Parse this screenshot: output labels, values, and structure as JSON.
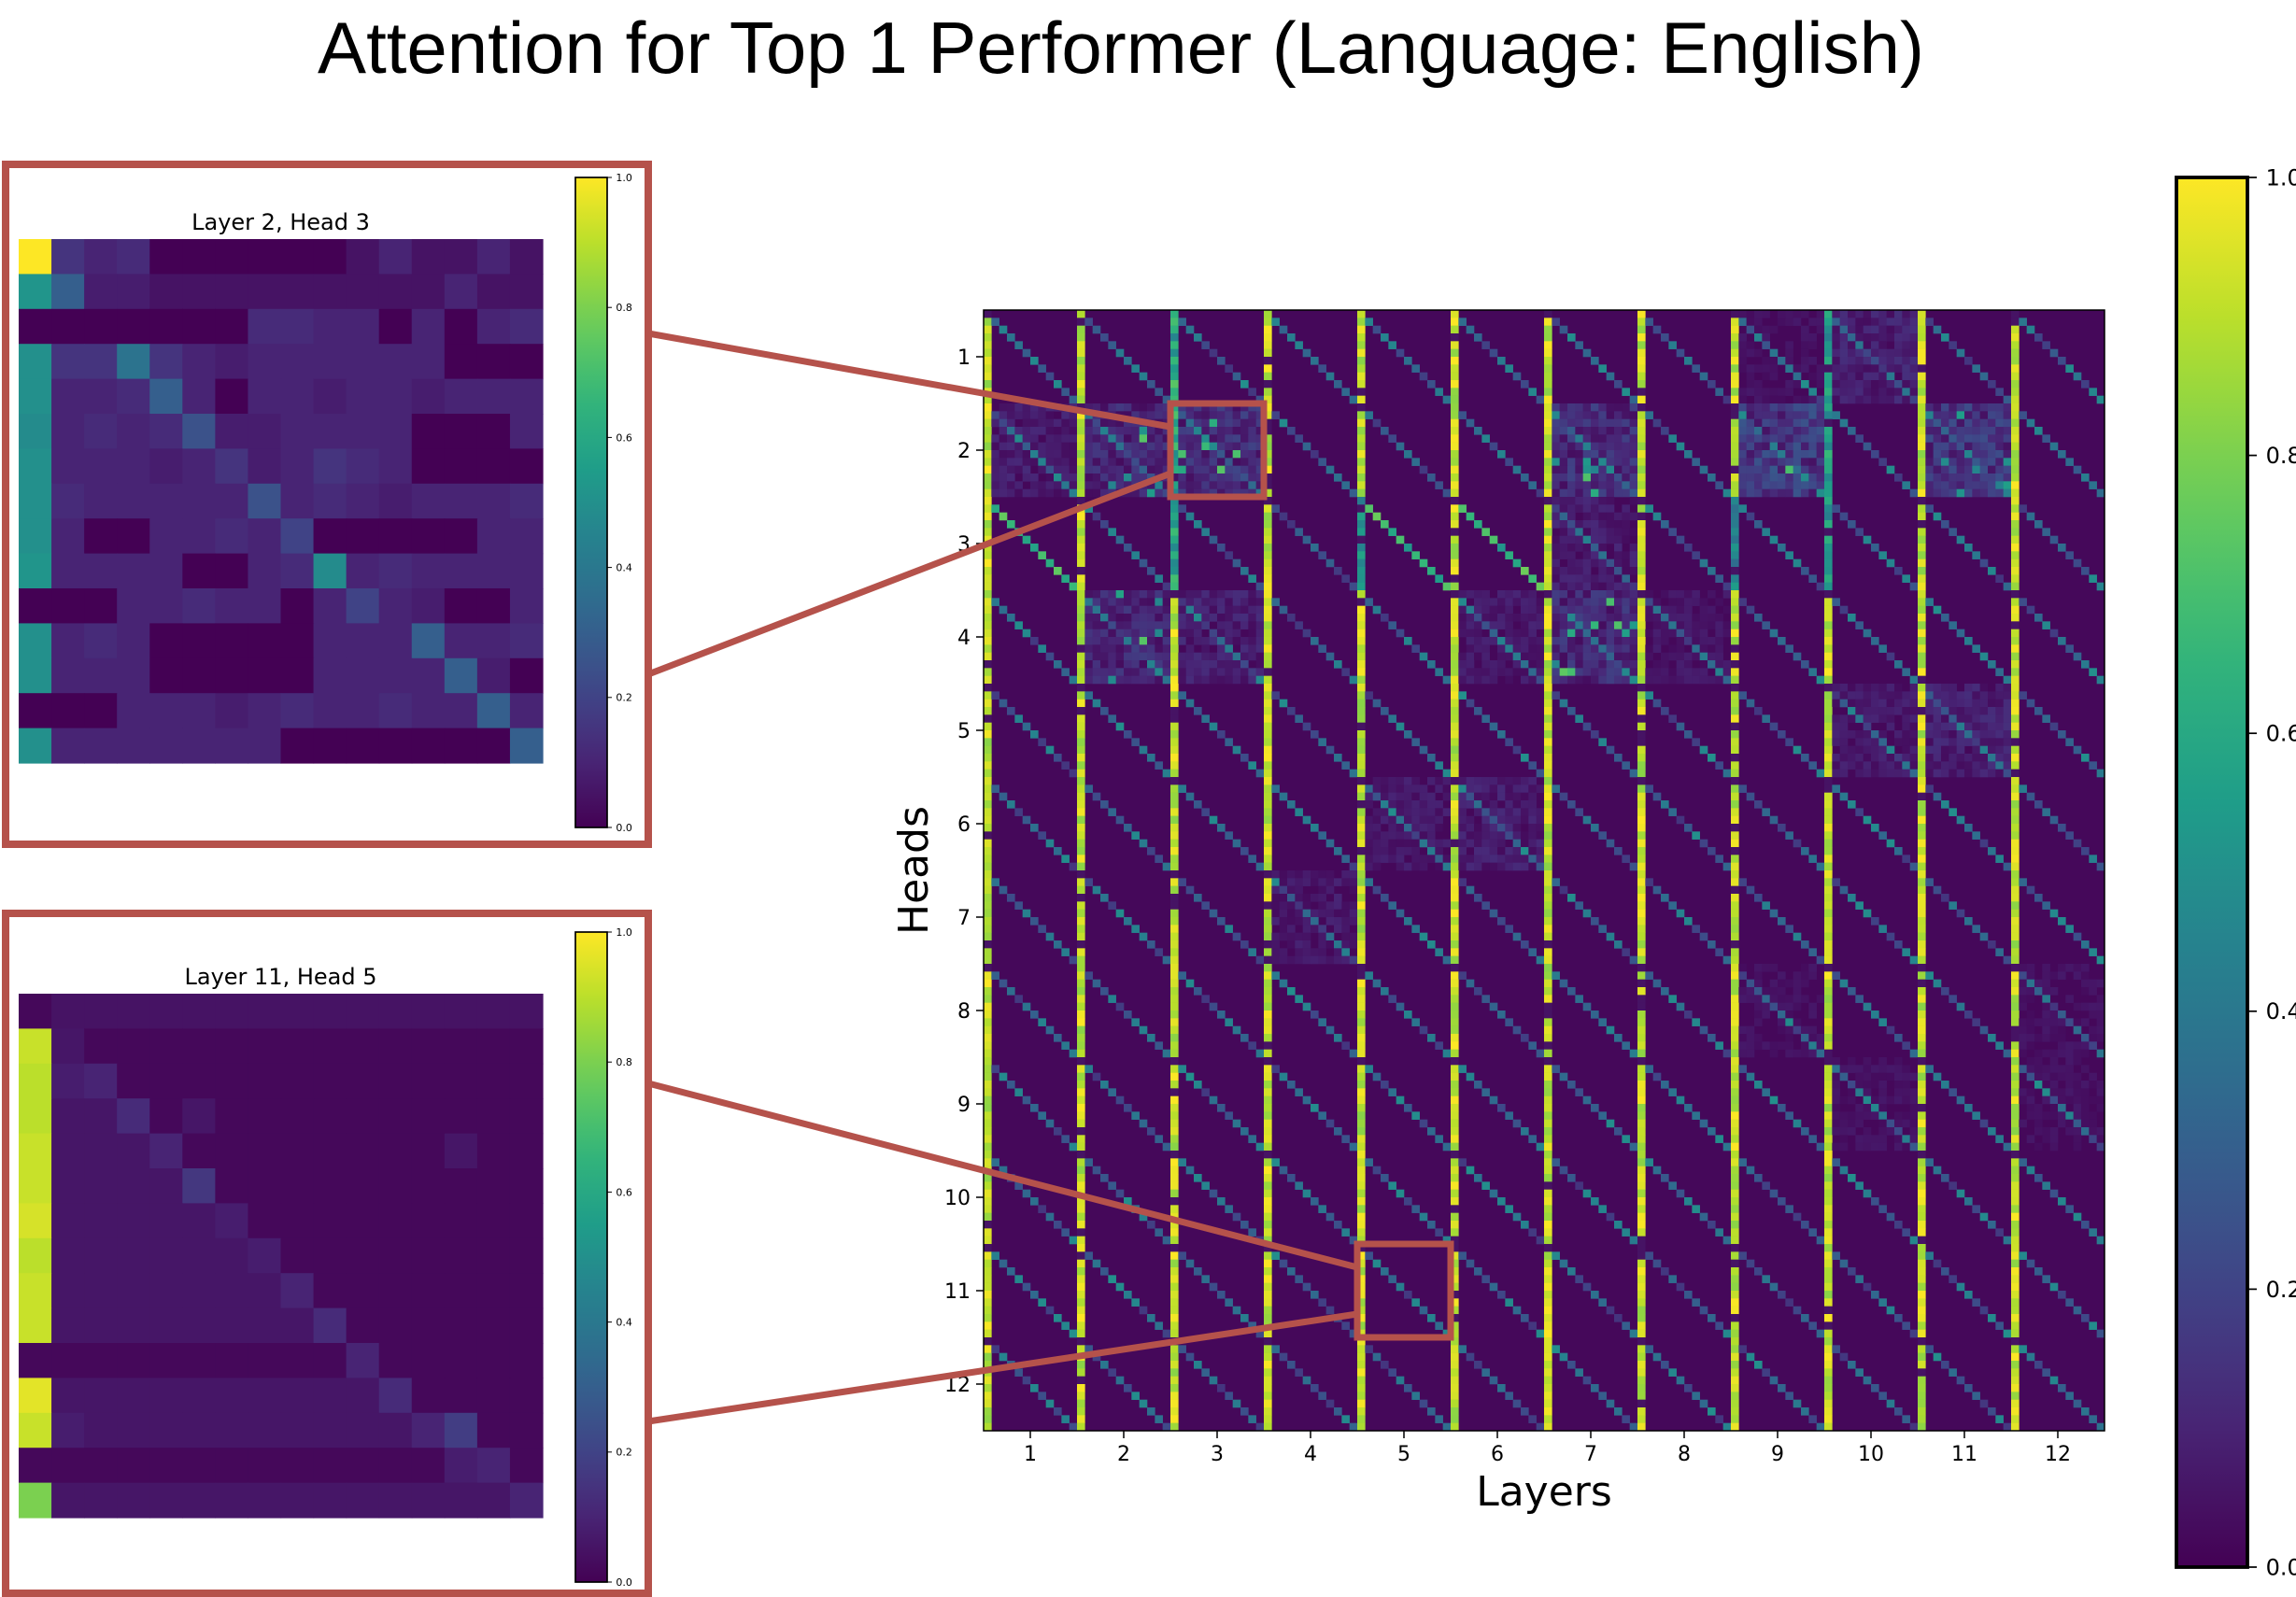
{
  "title": "Attention for Top 1 Performer (Language: English)",
  "colors": {
    "highlight": "#b5524b",
    "viridis_low": "#440154",
    "viridis_high": "#fde725"
  },
  "colorbar_ticks": [
    "0.0",
    "0.2",
    "0.4",
    "0.6",
    "0.8",
    "1.0"
  ],
  "chart_data": [
    {
      "type": "heatmap",
      "title": "",
      "xlabel": "Layers",
      "ylabel": "Heads",
      "x_tick_labels": [
        "1",
        "2",
        "3",
        "4",
        "5",
        "6",
        "7",
        "8",
        "9",
        "10",
        "11",
        "12"
      ],
      "y_tick_labels": [
        "1",
        "2",
        "3",
        "4",
        "5",
        "6",
        "7",
        "8",
        "9",
        "10",
        "11",
        "12"
      ],
      "grid_size": [
        12,
        12
      ],
      "tokens_per_cell": 12,
      "value_range": [
        0.0,
        1.0
      ],
      "colormap": "viridis",
      "colorbar_ticks": [
        0.0,
        0.2,
        0.4,
        0.6,
        0.8,
        1.0
      ],
      "highlighted_cells": [
        {
          "layer": 3,
          "head": 2
        },
        {
          "layer": 5,
          "head": 11
        }
      ],
      "note_pattern": "bright first-token column in every layer with diagonal self-attention"
    },
    {
      "type": "heatmap",
      "title": "Layer 2, Head 3",
      "colormap": "viridis",
      "value_range": [
        0.0,
        1.0
      ],
      "colorbar_ticks": [
        0.0,
        0.2,
        0.4,
        0.6,
        0.8,
        1.0
      ],
      "matrix": [
        [
          1.0,
          0.15,
          0.1,
          0.12,
          0.0,
          0.0,
          0.0,
          0.0,
          0.0,
          0.0,
          0.05,
          0.1,
          0.05,
          0.05,
          0.1,
          0.05
        ],
        [
          0.52,
          0.3,
          0.08,
          0.08,
          0.05,
          0.05,
          0.05,
          0.05,
          0.05,
          0.05,
          0.05,
          0.05,
          0.05,
          0.1,
          0.05,
          0.05
        ],
        [
          0.0,
          0.0,
          0.0,
          0.0,
          0.0,
          0.0,
          0.0,
          0.12,
          0.12,
          0.1,
          0.1,
          0.0,
          0.1,
          0.0,
          0.1,
          0.12
        ],
        [
          0.5,
          0.15,
          0.15,
          0.38,
          0.15,
          0.1,
          0.08,
          0.1,
          0.1,
          0.1,
          0.1,
          0.1,
          0.1,
          0.0,
          0.0,
          0.0
        ],
        [
          0.5,
          0.1,
          0.1,
          0.12,
          0.3,
          0.1,
          0.0,
          0.1,
          0.1,
          0.08,
          0.1,
          0.1,
          0.08,
          0.1,
          0.1,
          0.1
        ],
        [
          0.48,
          0.1,
          0.12,
          0.1,
          0.12,
          0.25,
          0.08,
          0.08,
          0.1,
          0.1,
          0.1,
          0.1,
          0.0,
          0.0,
          0.0,
          0.1
        ],
        [
          0.5,
          0.1,
          0.1,
          0.1,
          0.08,
          0.1,
          0.15,
          0.08,
          0.1,
          0.15,
          0.12,
          0.1,
          0.0,
          0.0,
          0.0,
          0.0
        ],
        [
          0.5,
          0.12,
          0.1,
          0.1,
          0.1,
          0.1,
          0.1,
          0.25,
          0.1,
          0.12,
          0.1,
          0.08,
          0.1,
          0.1,
          0.1,
          0.12
        ],
        [
          0.5,
          0.1,
          0.0,
          0.0,
          0.1,
          0.1,
          0.12,
          0.1,
          0.2,
          0.0,
          0.0,
          0.0,
          0.0,
          0.0,
          0.1,
          0.1
        ],
        [
          0.52,
          0.1,
          0.1,
          0.1,
          0.1,
          0.0,
          0.0,
          0.1,
          0.12,
          0.48,
          0.1,
          0.12,
          0.1,
          0.1,
          0.1,
          0.1
        ],
        [
          0.0,
          0.0,
          0.0,
          0.1,
          0.1,
          0.12,
          0.1,
          0.1,
          0.0,
          0.1,
          0.2,
          0.1,
          0.08,
          0.0,
          0.0,
          0.1
        ],
        [
          0.5,
          0.1,
          0.12,
          0.1,
          0.0,
          0.0,
          0.0,
          0.0,
          0.0,
          0.1,
          0.1,
          0.1,
          0.3,
          0.1,
          0.1,
          0.12
        ],
        [
          0.5,
          0.1,
          0.1,
          0.1,
          0.0,
          0.0,
          0.0,
          0.0,
          0.0,
          0.1,
          0.1,
          0.1,
          0.1,
          0.3,
          0.08,
          0.0
        ],
        [
          0.0,
          0.0,
          0.0,
          0.1,
          0.1,
          0.1,
          0.08,
          0.1,
          0.12,
          0.1,
          0.1,
          0.12,
          0.1,
          0.1,
          0.3,
          0.1
        ],
        [
          0.5,
          0.1,
          0.1,
          0.1,
          0.1,
          0.1,
          0.1,
          0.1,
          0.0,
          0.0,
          0.0,
          0.0,
          0.0,
          0.0,
          0.0,
          0.3
        ]
      ]
    },
    {
      "type": "heatmap",
      "title": "Layer 11, Head 5",
      "colormap": "viridis",
      "value_range": [
        0.0,
        1.0
      ],
      "colorbar_ticks": [
        0.0,
        0.2,
        0.4,
        0.6,
        0.8,
        1.0
      ],
      "matrix": [
        [
          0.02,
          0.05,
          0.05,
          0.05,
          0.05,
          0.05,
          0.05,
          0.05,
          0.05,
          0.05,
          0.05,
          0.05,
          0.05,
          0.05,
          0.05,
          0.05
        ],
        [
          0.92,
          0.06,
          0.02,
          0.02,
          0.02,
          0.02,
          0.02,
          0.02,
          0.02,
          0.02,
          0.02,
          0.02,
          0.02,
          0.02,
          0.02,
          0.02
        ],
        [
          0.9,
          0.08,
          0.1,
          0.02,
          0.02,
          0.02,
          0.02,
          0.02,
          0.02,
          0.02,
          0.02,
          0.02,
          0.02,
          0.02,
          0.02,
          0.02
        ],
        [
          0.9,
          0.06,
          0.06,
          0.12,
          0.02,
          0.06,
          0.02,
          0.02,
          0.02,
          0.02,
          0.02,
          0.02,
          0.02,
          0.02,
          0.02,
          0.02
        ],
        [
          0.92,
          0.06,
          0.06,
          0.06,
          0.1,
          0.02,
          0.02,
          0.02,
          0.02,
          0.02,
          0.02,
          0.02,
          0.02,
          0.06,
          0.02,
          0.02
        ],
        [
          0.92,
          0.06,
          0.06,
          0.06,
          0.06,
          0.16,
          0.02,
          0.02,
          0.02,
          0.02,
          0.02,
          0.02,
          0.02,
          0.02,
          0.02,
          0.02
        ],
        [
          0.94,
          0.06,
          0.06,
          0.06,
          0.06,
          0.06,
          0.08,
          0.02,
          0.02,
          0.02,
          0.02,
          0.02,
          0.02,
          0.02,
          0.02,
          0.02
        ],
        [
          0.9,
          0.06,
          0.06,
          0.06,
          0.06,
          0.06,
          0.06,
          0.08,
          0.02,
          0.02,
          0.02,
          0.02,
          0.02,
          0.02,
          0.02,
          0.02
        ],
        [
          0.92,
          0.06,
          0.06,
          0.06,
          0.06,
          0.06,
          0.06,
          0.06,
          0.1,
          0.02,
          0.02,
          0.02,
          0.02,
          0.02,
          0.02,
          0.02
        ],
        [
          0.92,
          0.06,
          0.06,
          0.06,
          0.06,
          0.06,
          0.06,
          0.06,
          0.06,
          0.12,
          0.02,
          0.02,
          0.02,
          0.02,
          0.02,
          0.02
        ],
        [
          0.02,
          0.02,
          0.02,
          0.02,
          0.02,
          0.02,
          0.02,
          0.02,
          0.02,
          0.02,
          0.1,
          0.02,
          0.02,
          0.02,
          0.02,
          0.02
        ],
        [
          0.96,
          0.06,
          0.06,
          0.06,
          0.06,
          0.06,
          0.06,
          0.06,
          0.06,
          0.06,
          0.06,
          0.12,
          0.02,
          0.02,
          0.02,
          0.02
        ],
        [
          0.92,
          0.08,
          0.06,
          0.06,
          0.06,
          0.06,
          0.06,
          0.06,
          0.06,
          0.06,
          0.06,
          0.06,
          0.1,
          0.18,
          0.02,
          0.02
        ],
        [
          0.02,
          0.02,
          0.02,
          0.02,
          0.02,
          0.02,
          0.02,
          0.02,
          0.02,
          0.02,
          0.02,
          0.02,
          0.02,
          0.08,
          0.1,
          0.02
        ],
        [
          0.8,
          0.06,
          0.06,
          0.06,
          0.06,
          0.06,
          0.06,
          0.06,
          0.06,
          0.06,
          0.06,
          0.06,
          0.06,
          0.06,
          0.06,
          0.1
        ]
      ]
    }
  ]
}
